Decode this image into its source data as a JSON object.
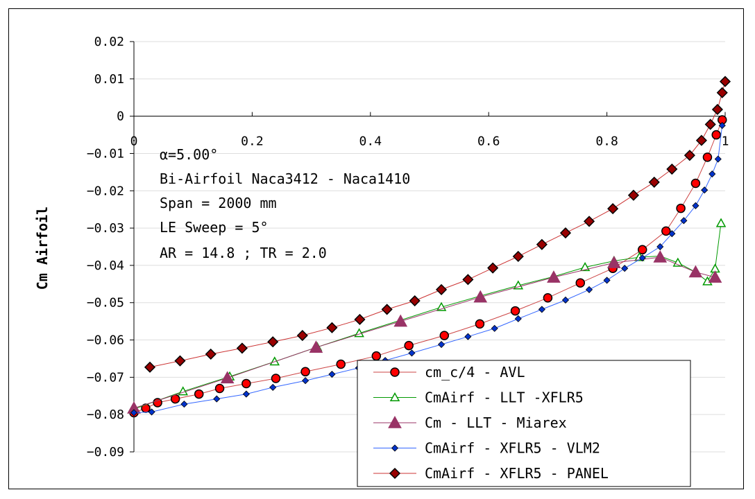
{
  "chart_data": {
    "type": "line",
    "ylabel": "Cm Airfoil",
    "xlabel": "",
    "xlim": [
      0,
      1
    ],
    "ylim": [
      -0.09,
      0.02
    ],
    "x_ticks": [
      "0",
      "0.2",
      "0.4",
      "0.6",
      "0.8",
      "1"
    ],
    "y_ticks": [
      "0.02",
      "0.01",
      "0",
      "-0.01",
      "-0.02",
      "-0.03",
      "-0.04",
      "-0.05",
      "-0.06",
      "-0.07",
      "-0.08",
      "-0.09"
    ],
    "grid": "horizontal",
    "legend_position": "bottom-right",
    "annotations": [
      "α=5.00°",
      "Bi-Airfoil Naca3412 - Naca1410",
      "Span = 2000 mm",
      "LE Sweep = 5°",
      "AR = 14.8 ; TR =  2.0"
    ],
    "series": [
      {
        "name": "cm_c/4 - AVL",
        "color": "#ff0000",
        "line_color": "#cc4444",
        "marker": "circle",
        "x": [
          0.0,
          0.02,
          0.04,
          0.07,
          0.11,
          0.145,
          0.19,
          0.24,
          0.29,
          0.35,
          0.41,
          0.465,
          0.525,
          0.585,
          0.645,
          0.7,
          0.755,
          0.81,
          0.86,
          0.9,
          0.925,
          0.95,
          0.97,
          0.985,
          0.995
        ],
        "y": [
          -0.0795,
          -0.0783,
          -0.0768,
          -0.0758,
          -0.0745,
          -0.073,
          -0.0717,
          -0.0703,
          -0.0685,
          -0.0665,
          -0.0643,
          -0.0615,
          -0.0588,
          -0.0557,
          -0.0522,
          -0.0487,
          -0.0447,
          -0.0408,
          -0.0358,
          -0.0308,
          -0.0247,
          -0.018,
          -0.011,
          -0.005,
          -0.001
        ]
      },
      {
        "name": "CmAirf - LLT -XFLR5",
        "color": "#009900",
        "line_color": "#009900",
        "marker": "triangle-open",
        "x": [
          0.0,
          0.083,
          0.162,
          0.238,
          0.31,
          0.381,
          0.451,
          0.52,
          0.586,
          0.65,
          0.71,
          0.763,
          0.812,
          0.855,
          0.89,
          0.92,
          0.95,
          0.97,
          0.983,
          0.993
        ],
        "y": [
          -0.0785,
          -0.0738,
          -0.0698,
          -0.0658,
          -0.0619,
          -0.0582,
          -0.0547,
          -0.0512,
          -0.0482,
          -0.0454,
          -0.043,
          -0.0405,
          -0.0388,
          -0.0378,
          -0.0375,
          -0.0393,
          -0.0418,
          -0.0443,
          -0.0409,
          -0.0287
        ]
      },
      {
        "name": "Cm - LLT - Miarex",
        "color": "#993366",
        "line_color": "#993366",
        "marker": "triangle",
        "x": [
          0.0,
          0.158,
          0.308,
          0.451,
          0.586,
          0.71,
          0.812,
          0.89,
          0.95,
          0.983
        ],
        "y": [
          -0.0783,
          -0.0702,
          -0.062,
          -0.055,
          -0.0485,
          -0.0432,
          -0.0393,
          -0.0378,
          -0.0418,
          -0.0432
        ]
      },
      {
        "name": "CmAirf - XFLR5 - VLM2",
        "color": "#0033cc",
        "line_color": "#3366ff",
        "marker": "diamond-small",
        "x": [
          0.0,
          0.03,
          0.085,
          0.14,
          0.19,
          0.235,
          0.29,
          0.335,
          0.38,
          0.425,
          0.47,
          0.52,
          0.565,
          0.61,
          0.65,
          0.69,
          0.73,
          0.77,
          0.8,
          0.83,
          0.86,
          0.89,
          0.91,
          0.93,
          0.95,
          0.965,
          0.978,
          0.988,
          0.995
        ],
        "y": [
          -0.0795,
          -0.0793,
          -0.0772,
          -0.0758,
          -0.0745,
          -0.0727,
          -0.0709,
          -0.0692,
          -0.0675,
          -0.0655,
          -0.0635,
          -0.0612,
          -0.0591,
          -0.0569,
          -0.0543,
          -0.0518,
          -0.0493,
          -0.0465,
          -0.044,
          -0.0408,
          -0.038,
          -0.035,
          -0.0315,
          -0.028,
          -0.024,
          -0.0198,
          -0.0155,
          -0.0115,
          -0.0025
        ]
      },
      {
        "name": "CmAirf - XFLR5 - PANEL",
        "color": "#990000",
        "line_color": "#cc3333",
        "marker": "diamond",
        "x": [
          0.027,
          0.078,
          0.13,
          0.183,
          0.235,
          0.285,
          0.335,
          0.382,
          0.428,
          0.475,
          0.52,
          0.565,
          0.607,
          0.65,
          0.69,
          0.73,
          0.77,
          0.81,
          0.845,
          0.88,
          0.91,
          0.94,
          0.96,
          0.975,
          0.987,
          0.995,
          1.0
        ],
        "y": [
          -0.0673,
          -0.0656,
          -0.0638,
          -0.0622,
          -0.0605,
          -0.0588,
          -0.0567,
          -0.0545,
          -0.0518,
          -0.0495,
          -0.0465,
          -0.0438,
          -0.0407,
          -0.0376,
          -0.0344,
          -0.0313,
          -0.0282,
          -0.0248,
          -0.0212,
          -0.0177,
          -0.0142,
          -0.0105,
          -0.0065,
          -0.0022,
          0.0018,
          0.0063,
          0.0093
        ]
      }
    ]
  }
}
